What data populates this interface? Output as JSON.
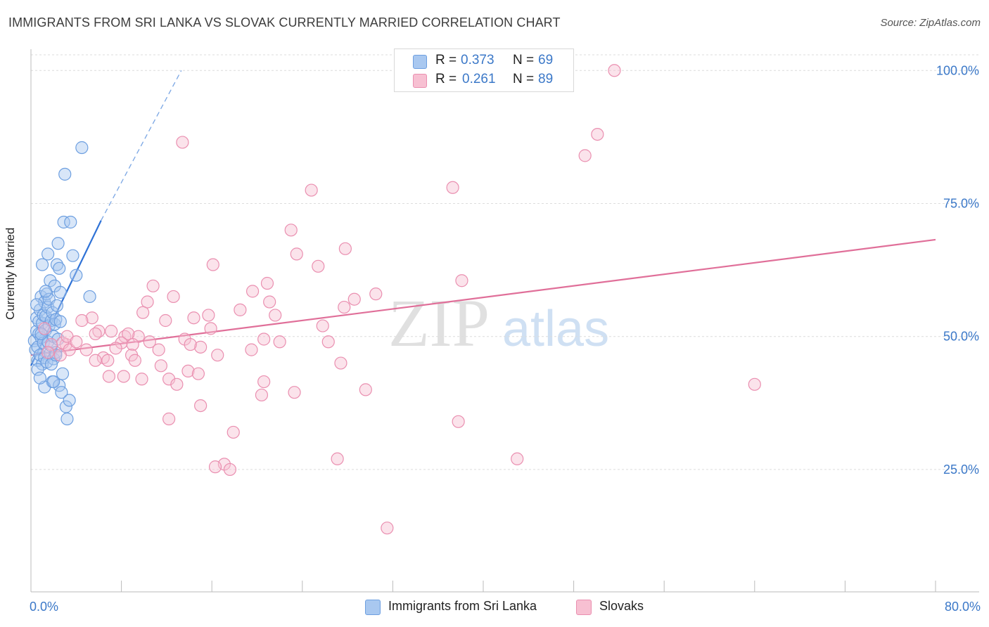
{
  "title": "IMMIGRANTS FROM SRI LANKA VS SLOVAK CURRENTLY MARRIED CORRELATION CHART",
  "source": "Source: ZipAtlas.com",
  "watermark": {
    "zip": "ZIP",
    "atlas": "atlas"
  },
  "legend": {
    "r_label": "R =",
    "n_label": "N =",
    "rows": [
      {
        "r": "0.373",
        "n": "69",
        "color": "#a9c8f0",
        "border": "#6d9fe0"
      },
      {
        "r": "0.261",
        "n": "89",
        "color": "#f7c0d2",
        "border": "#ea8fb0"
      }
    ]
  },
  "chart_data": {
    "type": "scatter",
    "title": "IMMIGRANTS FROM SRI LANKA VS SLOVAK CURRENTLY MARRIED CORRELATION CHART",
    "xlabel": "",
    "ylabel": "Currently Married",
    "xlim": [
      0,
      80
    ],
    "ylim": [
      2,
      104
    ],
    "x_tick_labels": [
      "0.0%",
      "80.0%"
    ],
    "y_ticks": [
      25,
      50,
      75,
      100
    ],
    "y_tick_labels": [
      "25.0%",
      "50.0%",
      "75.0%",
      "100.0%"
    ],
    "grid": true,
    "legend_position": "top-center",
    "series": [
      {
        "name": "Immigrants from Sri Lanka",
        "color": "#6d9fe0",
        "fill": "#a9c8f0",
        "trend": {
          "x": [
            0,
            6.2
          ],
          "y": [
            44.5,
            71.8
          ],
          "dashed_to": [
            13.3,
            100
          ]
        },
        "points": [
          [
            0.3,
            49.2
          ],
          [
            0.4,
            47.5
          ],
          [
            0.5,
            51.0
          ],
          [
            0.5,
            53.5
          ],
          [
            0.6,
            45.5
          ],
          [
            0.6,
            48.0
          ],
          [
            0.7,
            50.5
          ],
          [
            0.7,
            52.8
          ],
          [
            0.8,
            55.0
          ],
          [
            0.8,
            46.5
          ],
          [
            0.9,
            49.8
          ],
          [
            0.9,
            57.5
          ],
          [
            1.0,
            44.8
          ],
          [
            1.0,
            52.5
          ],
          [
            1.1,
            54.0
          ],
          [
            1.1,
            48.8
          ],
          [
            1.2,
            56.5
          ],
          [
            1.2,
            46.0
          ],
          [
            1.3,
            53.8
          ],
          [
            1.3,
            51.2
          ],
          [
            1.4,
            58.0
          ],
          [
            1.4,
            45.2
          ],
          [
            1.5,
            55.5
          ],
          [
            1.5,
            49.0
          ],
          [
            1.6,
            52.0
          ],
          [
            1.6,
            57.0
          ],
          [
            1.7,
            46.8
          ],
          [
            1.7,
            60.5
          ],
          [
            1.8,
            53.0
          ],
          [
            1.8,
            48.2
          ],
          [
            1.9,
            41.5
          ],
          [
            1.9,
            54.5
          ],
          [
            2.0,
            50.0
          ],
          [
            2.0,
            45.8
          ],
          [
            2.1,
            59.5
          ],
          [
            2.1,
            52.3
          ],
          [
            2.2,
            47.0
          ],
          [
            2.2,
            53.2
          ],
          [
            2.3,
            63.5
          ],
          [
            2.3,
            55.8
          ],
          [
            2.4,
            67.5
          ],
          [
            2.4,
            49.5
          ],
          [
            2.5,
            62.8
          ],
          [
            2.5,
            40.8
          ],
          [
            2.6,
            58.3
          ],
          [
            2.6,
            52.8
          ],
          [
            2.7,
            39.5
          ],
          [
            2.8,
            43.0
          ],
          [
            2.9,
            71.5
          ],
          [
            3.0,
            80.5
          ],
          [
            3.1,
            36.8
          ],
          [
            3.2,
            34.5
          ],
          [
            3.4,
            38.0
          ],
          [
            3.5,
            71.5
          ],
          [
            3.7,
            65.2
          ],
          [
            4.0,
            61.5
          ],
          [
            4.5,
            85.5
          ],
          [
            5.2,
            57.5
          ],
          [
            1.0,
            63.5
          ],
          [
            1.5,
            65.5
          ],
          [
            0.6,
            43.8
          ],
          [
            1.2,
            40.5
          ],
          [
            2.0,
            41.5
          ],
          [
            0.9,
            50.5
          ],
          [
            1.8,
            44.8
          ],
          [
            0.5,
            56.0
          ],
          [
            1.3,
            58.5
          ],
          [
            0.8,
            42.2
          ],
          [
            2.2,
            46.5
          ]
        ]
      },
      {
        "name": "Slovaks",
        "color": "#ea8fb0",
        "fill": "#f7c0d2",
        "trend": {
          "x": [
            0,
            80
          ],
          "y": [
            46.5,
            68.2
          ]
        },
        "points": [
          [
            51.6,
            100
          ],
          [
            50.1,
            88
          ],
          [
            49.0,
            84
          ],
          [
            13.4,
            86.5
          ],
          [
            37.3,
            78
          ],
          [
            24.8,
            77.5
          ],
          [
            23.0,
            70
          ],
          [
            27.8,
            66.5
          ],
          [
            23.5,
            65.5
          ],
          [
            25.4,
            63.2
          ],
          [
            16.1,
            63.5
          ],
          [
            38.1,
            60.5
          ],
          [
            10.8,
            59.5
          ],
          [
            20.9,
            60
          ],
          [
            19.6,
            58.5
          ],
          [
            12.6,
            57.5
          ],
          [
            28.6,
            57
          ],
          [
            21.1,
            56.5
          ],
          [
            10.3,
            56.5
          ],
          [
            27.7,
            55.5
          ],
          [
            15.7,
            54
          ],
          [
            9.9,
            54.5
          ],
          [
            21.6,
            54
          ],
          [
            14.4,
            53.5
          ],
          [
            11.9,
            53
          ],
          [
            5.4,
            53.5
          ],
          [
            4.5,
            53
          ],
          [
            6.0,
            51
          ],
          [
            7.1,
            51
          ],
          [
            5.7,
            50.5
          ],
          [
            8.3,
            50
          ],
          [
            15.9,
            51.5
          ],
          [
            9.5,
            50
          ],
          [
            8.6,
            50.5
          ],
          [
            13.6,
            49.5
          ],
          [
            10.5,
            49
          ],
          [
            20.6,
            49.5
          ],
          [
            26.3,
            49
          ],
          [
            22.0,
            49
          ],
          [
            3.1,
            48.5
          ],
          [
            2.8,
            48.8
          ],
          [
            1.8,
            48.5
          ],
          [
            3.4,
            47.5
          ],
          [
            4.9,
            47.5
          ],
          [
            8.0,
            48.8
          ],
          [
            15.0,
            48
          ],
          [
            9.0,
            48.5
          ],
          [
            14.1,
            48.5
          ],
          [
            11.3,
            47.5
          ],
          [
            2.6,
            46.5
          ],
          [
            1.5,
            47
          ],
          [
            6.4,
            46
          ],
          [
            6.8,
            45.5
          ],
          [
            8.9,
            46.5
          ],
          [
            16.5,
            46.5
          ],
          [
            5.7,
            45.5
          ],
          [
            27.4,
            45
          ],
          [
            11.5,
            44.5
          ],
          [
            13.9,
            43.5
          ],
          [
            14.8,
            43
          ],
          [
            8.2,
            42.5
          ],
          [
            9.8,
            42
          ],
          [
            12.2,
            42
          ],
          [
            6.9,
            42.5
          ],
          [
            12.9,
            41
          ],
          [
            20.6,
            41.5
          ],
          [
            64.0,
            41
          ],
          [
            29.6,
            40
          ],
          [
            23.3,
            39.5
          ],
          [
            20.4,
            39
          ],
          [
            15.0,
            37
          ],
          [
            37.8,
            34
          ],
          [
            12.2,
            34.5
          ],
          [
            17.9,
            32
          ],
          [
            27.1,
            27
          ],
          [
            43.0,
            27
          ],
          [
            17.1,
            26
          ],
          [
            16.3,
            25.5
          ],
          [
            17.6,
            25
          ],
          [
            31.5,
            14
          ],
          [
            3.2,
            50
          ],
          [
            4.0,
            49
          ],
          [
            1.2,
            51.5
          ],
          [
            7.5,
            47.8
          ],
          [
            9.2,
            45.5
          ],
          [
            19.5,
            47.5
          ],
          [
            25.8,
            52
          ],
          [
            18.5,
            55
          ],
          [
            30.5,
            58
          ]
        ]
      }
    ]
  },
  "bottom_legend": [
    {
      "label": "Immigrants from Sri Lanka",
      "color": "#a9c8f0",
      "border": "#6d9fe0"
    },
    {
      "label": "Slovaks",
      "color": "#f7c0d2",
      "border": "#ea8fb0"
    }
  ]
}
